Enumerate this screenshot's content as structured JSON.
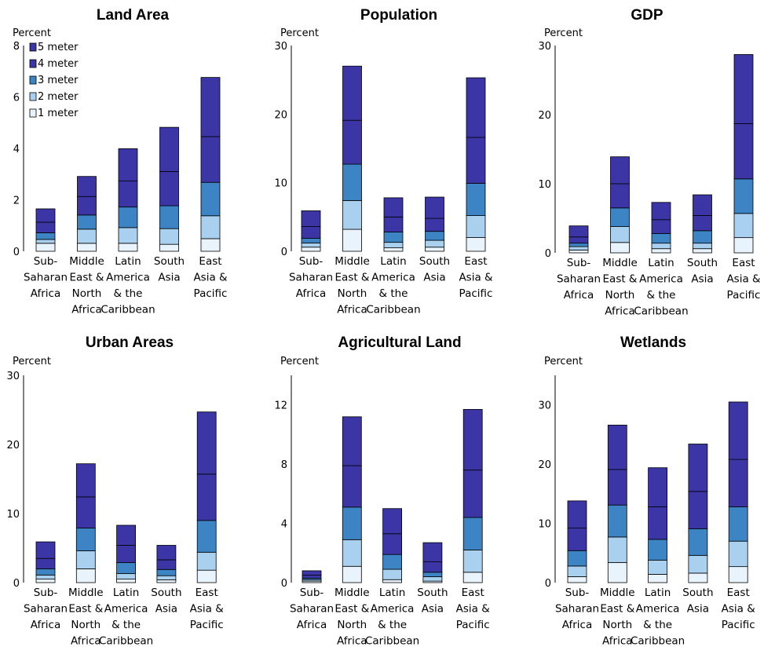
{
  "colors": {
    "1 meter": "#e9f3fb",
    "2 meter": "#a9d1ef",
    "3 meter": "#3c84c3",
    "4 meter": "#3c35a6",
    "5 meter": "#3c35a6",
    "outline": "#000000",
    "axis": "#000000"
  },
  "legend": [
    "5 meter",
    "4 meter",
    "3 meter",
    "2 meter",
    "1 meter"
  ],
  "category_labels": [
    [
      "Sub-",
      "Saharan",
      "Africa"
    ],
    [
      "Middle",
      "East &",
      "North",
      "Africa"
    ],
    [
      "Latin",
      "America",
      "& the",
      "Caribbean"
    ],
    [
      "South",
      "Asia"
    ],
    [
      "East",
      "Asia &",
      "Pacific"
    ]
  ],
  "chart_data": [
    {
      "type": "bar",
      "stacked": true,
      "title": "Land Area",
      "ylabel": "Percent",
      "ylim": [
        0,
        8
      ],
      "yticks": [
        0,
        2,
        4,
        6,
        8
      ],
      "categories": [
        "Sub-Saharan Africa",
        "Middle East & North Africa",
        "Latin America & the Caribbean",
        "South Asia",
        "East Asia & Pacific"
      ],
      "legend_position": "top-left",
      "series": [
        {
          "name": "1 meter",
          "values": [
            0.31,
            0.31,
            0.31,
            0.27,
            0.49
          ]
        },
        {
          "name": "2 meter",
          "values": [
            0.15,
            0.55,
            0.61,
            0.61,
            0.89
          ]
        },
        {
          "name": "3 meter",
          "values": [
            0.26,
            0.55,
            0.8,
            0.89,
            1.3
          ]
        },
        {
          "name": "4 meter",
          "values": [
            0.41,
            0.72,
            1.01,
            1.33,
            1.78
          ]
        },
        {
          "name": "5 meter",
          "values": [
            0.52,
            0.78,
            1.26,
            1.72,
            2.3
          ]
        }
      ]
    },
    {
      "type": "bar",
      "stacked": true,
      "title": "Population",
      "ylabel": "Percent",
      "ylim": [
        0,
        30
      ],
      "yticks": [
        0,
        10,
        20,
        30
      ],
      "categories": [
        "Sub-Saharan Africa",
        "Middle East & North Africa",
        "Latin America & the Caribbean",
        "South Asia",
        "East Asia & Pacific"
      ],
      "series": [
        {
          "name": "1 meter",
          "values": [
            0.6,
            3.2,
            0.5,
            0.6,
            2.0
          ]
        },
        {
          "name": "2 meter",
          "values": [
            0.6,
            4.2,
            0.8,
            1.0,
            3.2
          ]
        },
        {
          "name": "3 meter",
          "values": [
            0.7,
            5.3,
            1.5,
            1.3,
            4.7
          ]
        },
        {
          "name": "4 meter",
          "values": [
            1.7,
            6.4,
            2.2,
            1.9,
            6.7
          ]
        },
        {
          "name": "5 meter",
          "values": [
            2.3,
            7.9,
            2.8,
            3.1,
            8.7
          ]
        }
      ]
    },
    {
      "type": "bar",
      "stacked": true,
      "title": "GDP",
      "ylabel": "Percent",
      "ylim": [
        0,
        30
      ],
      "yticks": [
        0,
        10,
        20,
        30
      ],
      "categories": [
        "Sub-Saharan Africa",
        "Middle East & North Africa",
        "Latin America & the Caribbean",
        "South Asia",
        "East Asia & Pacific"
      ],
      "series": [
        {
          "name": "1 meter",
          "values": [
            0.4,
            1.5,
            0.6,
            0.6,
            2.2
          ]
        },
        {
          "name": "2 meter",
          "values": [
            0.5,
            2.3,
            0.8,
            0.8,
            3.5
          ]
        },
        {
          "name": "3 meter",
          "values": [
            0.5,
            2.7,
            1.4,
            1.8,
            5.0
          ]
        },
        {
          "name": "4 meter",
          "values": [
            0.9,
            3.5,
            2.0,
            2.2,
            8.0
          ]
        },
        {
          "name": "5 meter",
          "values": [
            1.6,
            3.9,
            2.5,
            3.0,
            10.0
          ]
        }
      ]
    },
    {
      "type": "bar",
      "stacked": true,
      "title": "Urban Areas",
      "ylabel": "Percent",
      "ylim": [
        0,
        30
      ],
      "yticks": [
        0,
        10,
        20,
        30
      ],
      "categories": [
        "Sub-Saharan Africa",
        "Middle East & North Africa",
        "Latin America & the Caribbean",
        "South Asia",
        "East Asia & Pacific"
      ],
      "series": [
        {
          "name": "1 meter",
          "values": [
            0.5,
            2.0,
            0.5,
            0.4,
            1.8
          ]
        },
        {
          "name": "2 meter",
          "values": [
            0.6,
            2.6,
            0.8,
            0.6,
            2.6
          ]
        },
        {
          "name": "3 meter",
          "values": [
            0.9,
            3.3,
            1.6,
            0.9,
            4.6
          ]
        },
        {
          "name": "4 meter",
          "values": [
            1.5,
            4.5,
            2.5,
            1.4,
            6.7
          ]
        },
        {
          "name": "5 meter",
          "values": [
            2.4,
            4.8,
            2.9,
            2.1,
            9.0
          ]
        }
      ]
    },
    {
      "type": "bar",
      "stacked": true,
      "title": "Agricultural Land",
      "ylabel": "Percent",
      "ylim": [
        0,
        14
      ],
      "yticks": [
        0,
        4,
        8,
        12
      ],
      "categories": [
        "Sub-Saharan Africa",
        "Middle East & North Africa",
        "Latin America & the Caribbean",
        "South Asia",
        "East Asia & Pacific"
      ],
      "series": [
        {
          "name": "1 meter",
          "values": [
            0.1,
            1.1,
            0.2,
            0.1,
            0.7
          ]
        },
        {
          "name": "2 meter",
          "values": [
            0.1,
            1.8,
            0.7,
            0.3,
            1.5
          ]
        },
        {
          "name": "3 meter",
          "values": [
            0.1,
            2.2,
            1.0,
            0.3,
            2.2
          ]
        },
        {
          "name": "4 meter",
          "values": [
            0.2,
            2.8,
            1.4,
            0.7,
            3.2
          ]
        },
        {
          "name": "5 meter",
          "values": [
            0.3,
            3.3,
            1.7,
            1.3,
            4.1
          ]
        }
      ]
    },
    {
      "type": "bar",
      "stacked": true,
      "title": "Wetlands",
      "ylabel": "Percent",
      "ylim": [
        0,
        35
      ],
      "yticks": [
        0,
        10,
        20,
        30
      ],
      "categories": [
        "Sub-Saharan Africa",
        "Middle East & North Africa",
        "Latin America & the Caribbean",
        "South Asia",
        "East Asia & Pacific"
      ],
      "series": [
        {
          "name": "1 meter",
          "values": [
            1.0,
            3.4,
            1.4,
            1.6,
            2.7
          ]
        },
        {
          "name": "2 meter",
          "values": [
            1.8,
            4.3,
            2.4,
            3.0,
            4.3
          ]
        },
        {
          "name": "3 meter",
          "values": [
            2.6,
            5.4,
            3.5,
            4.5,
            5.8
          ]
        },
        {
          "name": "4 meter",
          "values": [
            3.8,
            6.0,
            5.5,
            6.3,
            8.0
          ]
        },
        {
          "name": "5 meter",
          "values": [
            4.6,
            7.5,
            6.6,
            8.0,
            9.7
          ]
        }
      ]
    }
  ]
}
